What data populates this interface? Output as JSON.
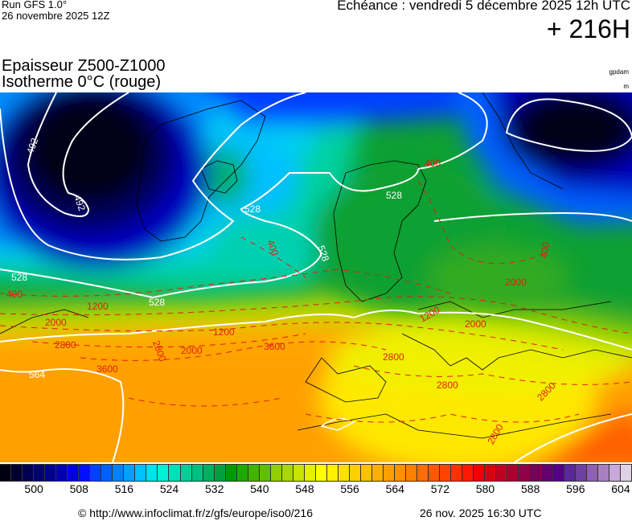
{
  "header": {
    "run": "Run GFS 1.0°",
    "run_date": "26 novembre 2025 12Z",
    "echeance": "Echéance : vendredi 5 décembre 2025 12h UTC",
    "horizon": "+ 216H",
    "title_line1": "Epaisseur Z500-Z1000",
    "title_line2": "Isotherme 0°C (rouge)",
    "unit_thickness": "gpdam",
    "unit_isotherm": "m"
  },
  "map": {
    "thickness_labels": [
      "492",
      "492",
      "528",
      "528",
      "528",
      "528",
      "528",
      "564"
    ],
    "isotherm_labels": [
      "400",
      "400",
      "400",
      "400",
      "1200",
      "1200",
      "1200",
      "2000",
      "2000",
      "2000",
      "2000",
      "2800",
      "2800",
      "2800",
      "2800",
      "2800",
      "2800",
      "3600",
      "3600"
    ],
    "contour_color": "#ffffff",
    "isotherm_color": "#e02010",
    "coastline_color": "#000000"
  },
  "colorbar": {
    "start_value": 494,
    "step": 2,
    "colors": [
      "#000010",
      "#000030",
      "#000050",
      "#000070",
      "#000090",
      "#0000b0",
      "#0000e0",
      "#0010ff",
      "#0040ff",
      "#0060ff",
      "#0080ff",
      "#00a0ff",
      "#00c0ff",
      "#00e0f0",
      "#00f0d8",
      "#00e0b8",
      "#00d098",
      "#00c080",
      "#00b060",
      "#00a040",
      "#009a00",
      "#20a800",
      "#40b400",
      "#60c000",
      "#90d000",
      "#a8d800",
      "#c8e400",
      "#e4f000",
      "#ffff00",
      "#fff000",
      "#ffe000",
      "#ffd000",
      "#ffc000",
      "#ffb000",
      "#ffa000",
      "#ff9000",
      "#ff8000",
      "#ff6c00",
      "#ff5800",
      "#ff4400",
      "#ff3000",
      "#ff1800",
      "#f00000",
      "#d80010",
      "#c00020",
      "#a80030",
      "#900048",
      "#780058",
      "#640070",
      "#540088",
      "#5a2898",
      "#7040a0",
      "#9060b0",
      "#a880c0",
      "#c8a8dc",
      "#e0d0e4"
    ],
    "labels": [
      "500",
      "508",
      "516",
      "524",
      "532",
      "540",
      "548",
      "556",
      "564",
      "572",
      "580",
      "588",
      "596",
      "604"
    ]
  },
  "footer": {
    "source": "© http://www.infoclimat.fr/z/gfs/europe/iso0/216",
    "generated": "26 nov. 2025 16:30 UTC"
  }
}
